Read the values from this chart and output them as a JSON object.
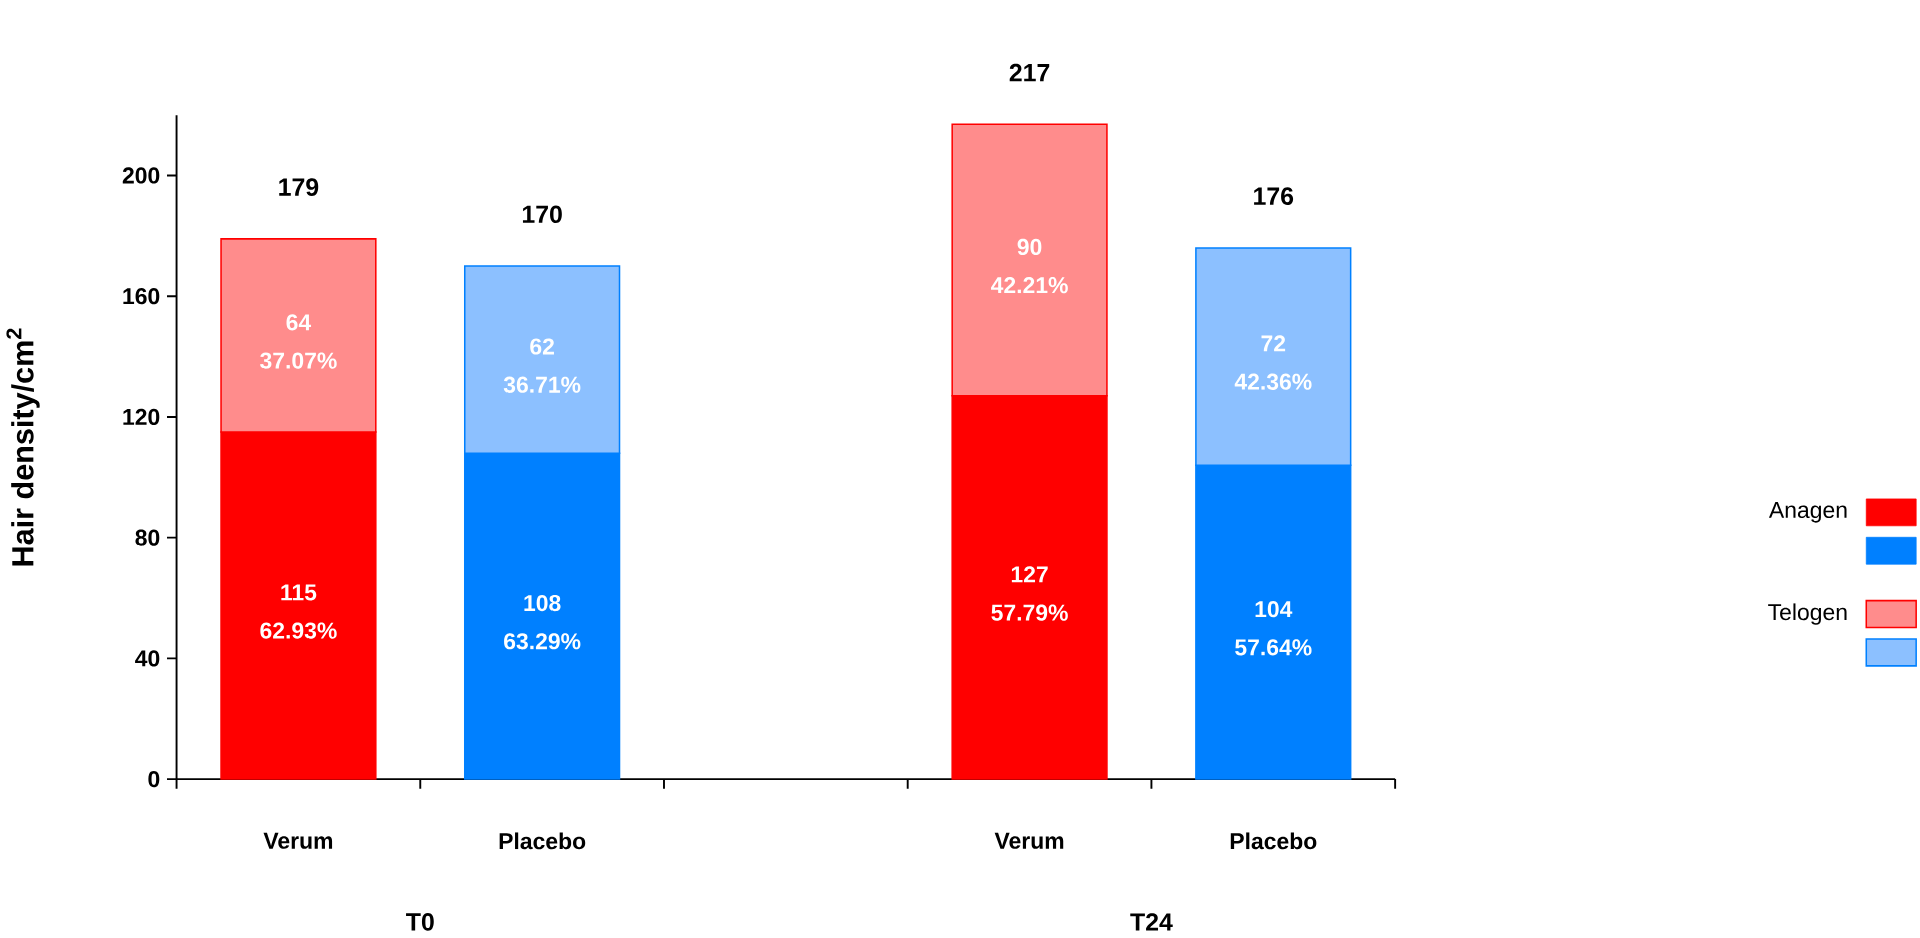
{
  "chart_data": {
    "type": "bar",
    "stacked": true,
    "ylabel": "Hair density/cm$^{2}$",
    "categories": [
      "Verum",
      "Placebo",
      null,
      "Verum",
      "Placebo"
    ],
    "series": [
      {
        "name": "Anagen",
        "values": [
          115,
          108,
          null,
          127,
          104
        ],
        "colors": [
          "#ff0000",
          "#0080ff",
          null,
          "#ff0000",
          "#0080ff"
        ],
        "value_labels": [
          "115 62.93%",
          "108 63.29%",
          null,
          "127 57.79%",
          "104 57.64%"
        ]
      },
      {
        "name": "Telogen",
        "values": [
          64,
          62,
          null,
          90,
          72
        ],
        "colors": [
          "#ff8c8c",
          "#8cc0ff",
          null,
          "#ff8c8c",
          "#8cc0ff"
        ],
        "value_labels": [
          "64 37.07%",
          "62 36.71%",
          null,
          "90 42.21%",
          "72 42.36%"
        ]
      }
    ],
    "totals": [
      "179",
      "170",
      null,
      "217",
      "176"
    ],
    "annotations": [
      "T0",
      "T24"
    ],
    "ylim": [
      0,
      220
    ],
    "yticks": [
      0,
      40,
      80,
      120,
      160,
      200
    ],
    "legend": "right"
  }
}
